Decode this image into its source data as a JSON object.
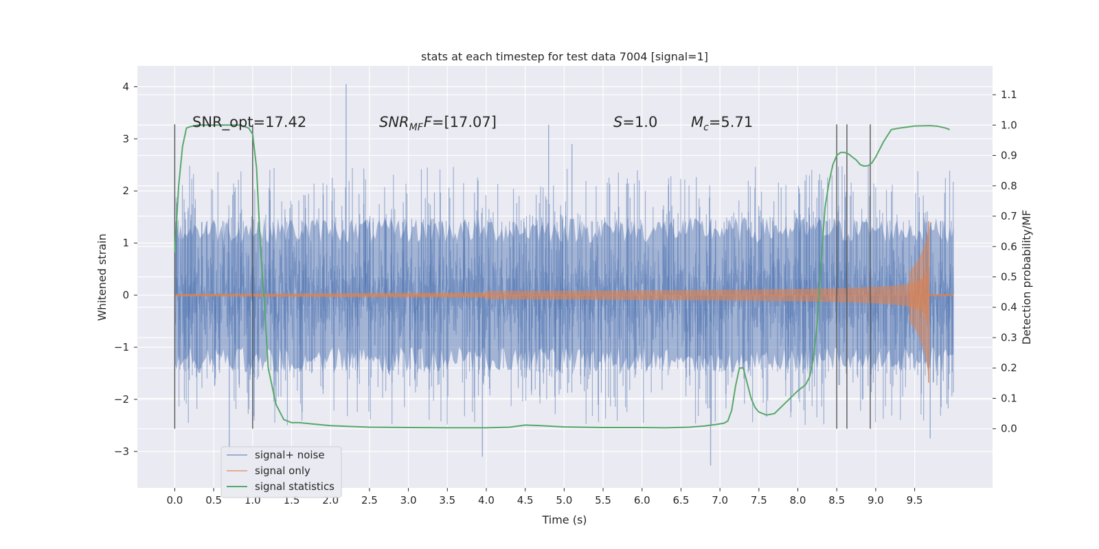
{
  "chart_data": {
    "type": "line",
    "title": "stats at each timestep for test data 7004 [signal=1]",
    "xlabel": "Time (s)",
    "ylabel_left": "Whitened strain",
    "ylabel_right": "Detection probability/MF",
    "xlim": [
      -0.48,
      10.5
    ],
    "ylim_left": [
      -3.7,
      4.4
    ],
    "ylim_right": [
      -0.195,
      1.195
    ],
    "x_ticks": [
      "0.0",
      "0.5",
      "1.0",
      "1.5",
      "2.0",
      "2.5",
      "3.0",
      "3.5",
      "4.0",
      "4.5",
      "5.0",
      "5.5",
      "6.0",
      "6.5",
      "7.0",
      "7.5",
      "8.0",
      "8.5",
      "9.0",
      "9.5"
    ],
    "y_ticks_left": [
      "−3",
      "−2",
      "−1",
      "0",
      "1",
      "2",
      "3",
      "4"
    ],
    "y_ticks_right": [
      "0.0",
      "0.1",
      "0.2",
      "0.3",
      "0.4",
      "0.5",
      "0.6",
      "0.7",
      "0.8",
      "0.9",
      "1.0",
      "1.1"
    ],
    "grid": true,
    "legend_position": "bottom-left",
    "annotations": {
      "snr_opt": "SNR_opt=17.42",
      "snr_mf_symbol": "SNR",
      "snr_mf_sub": "MF",
      "snr_mf_value": "=[17.07]",
      "s_symbol": "S",
      "s_value": "=1.0",
      "mc_symbol": "M",
      "mc_sub": "c",
      "mc_value": "=5.71"
    },
    "vertical_markers": [
      0.0,
      1.0,
      8.5,
      8.63,
      8.93
    ],
    "colors": {
      "noise": "#4c72b0",
      "signal": "#dd8452",
      "stats": "#55a868",
      "background": "#eaeaf2",
      "grid": "#ffffff",
      "marker": "#555555"
    },
    "series": [
      {
        "name": "signal+ noise",
        "x_range": [
          0.0,
          10.0
        ],
        "envelope_typical": [
          -1.5,
          1.5
        ],
        "notable_peaks": [
          {
            "x": 2.2,
            "y": 4.05
          },
          {
            "x": 4.8,
            "y": 3.27
          },
          {
            "x": 5.1,
            "y": 2.9
          },
          {
            "x": 3.95,
            "y": -3.1
          },
          {
            "x": 6.88,
            "y": -3.27
          },
          {
            "x": 9.7,
            "y": -2.75
          },
          {
            "x": 0.7,
            "y": -3.05
          }
        ]
      },
      {
        "name": "signal only",
        "x_range": [
          0.0,
          10.0
        ],
        "chirp_merger_time": 9.68,
        "peak_amplitude_pos": 1.42,
        "peak_amplitude_neg": -1.68
      },
      {
        "name": "signal statistics",
        "x": [
          0.0,
          0.05,
          0.1,
          0.15,
          0.2,
          0.3,
          0.5,
          0.7,
          0.85,
          0.95,
          1.0,
          1.05,
          1.1,
          1.15,
          1.2,
          1.3,
          1.4,
          1.5,
          1.6,
          1.8,
          2.0,
          2.5,
          3.0,
          3.5,
          4.0,
          4.3,
          4.5,
          4.7,
          5.0,
          5.5,
          6.0,
          6.3,
          6.6,
          6.8,
          6.95,
          7.05,
          7.1,
          7.15,
          7.2,
          7.25,
          7.3,
          7.35,
          7.4,
          7.45,
          7.5,
          7.6,
          7.7,
          7.8,
          7.9,
          8.0,
          8.1,
          8.15,
          8.2,
          8.25,
          8.3,
          8.35,
          8.4,
          8.45,
          8.5,
          8.55,
          8.6,
          8.65,
          8.7,
          8.75,
          8.8,
          8.85,
          8.9,
          8.95,
          9.0,
          9.05,
          9.1,
          9.2,
          9.3,
          9.5,
          9.7,
          9.8,
          9.9,
          9.95
        ],
        "values": [
          0.58,
          0.8,
          0.93,
          0.99,
          0.995,
          1.0,
          1.0,
          1.0,
          1.0,
          0.99,
          0.97,
          0.86,
          0.6,
          0.42,
          0.2,
          0.08,
          0.03,
          0.02,
          0.02,
          0.015,
          0.01,
          0.005,
          0.004,
          0.003,
          0.003,
          0.005,
          0.012,
          0.01,
          0.006,
          0.004,
          0.004,
          0.003,
          0.005,
          0.009,
          0.014,
          0.018,
          0.025,
          0.06,
          0.14,
          0.2,
          0.2,
          0.15,
          0.1,
          0.07,
          0.055,
          0.045,
          0.05,
          0.075,
          0.1,
          0.125,
          0.145,
          0.17,
          0.23,
          0.35,
          0.55,
          0.73,
          0.81,
          0.87,
          0.9,
          0.91,
          0.91,
          0.905,
          0.895,
          0.885,
          0.87,
          0.865,
          0.866,
          0.875,
          0.895,
          0.92,
          0.945,
          0.985,
          0.99,
          0.997,
          0.998,
          0.996,
          0.99,
          0.985
        ]
      }
    ]
  }
}
